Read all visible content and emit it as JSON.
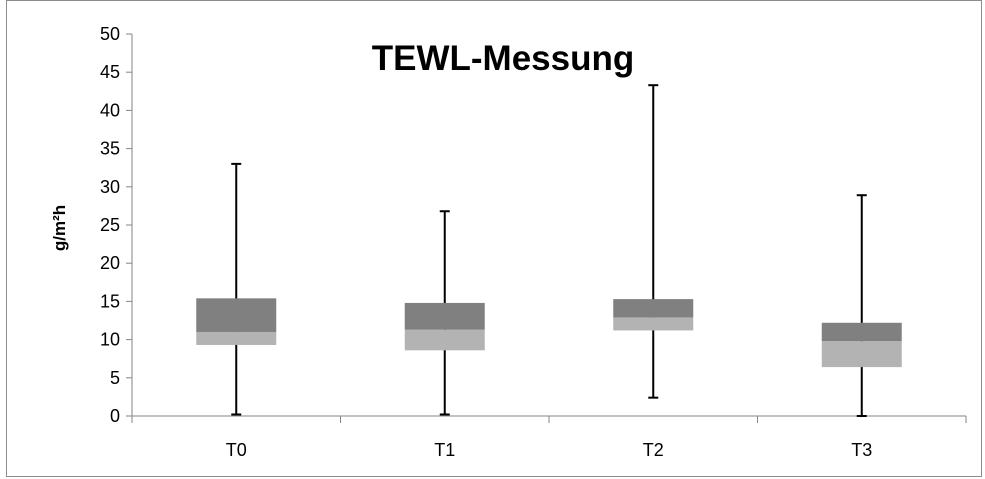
{
  "chart_data": {
    "type": "box",
    "title": "TEWL-Messung",
    "ylabel": "g/m²h",
    "xlabel": "",
    "ylim": [
      0,
      50
    ],
    "yticks": [
      0,
      5,
      10,
      15,
      20,
      25,
      30,
      35,
      40,
      45,
      50
    ],
    "categories": [
      "T0",
      "T1",
      "T2",
      "T3"
    ],
    "boxes": [
      {
        "category": "T0",
        "min": 0.2,
        "q1": 9.3,
        "median": 11.0,
        "q3": 15.4,
        "max": 33.0
      },
      {
        "category": "T1",
        "min": 0.2,
        "q1": 8.6,
        "median": 11.3,
        "q3": 14.8,
        "max": 26.8
      },
      {
        "category": "T2",
        "min": 2.4,
        "q1": 11.2,
        "median": 12.9,
        "q3": 15.3,
        "max": 43.3
      },
      {
        "category": "T3",
        "min": 0.0,
        "q1": 6.4,
        "median": 9.8,
        "q3": 12.2,
        "max": 28.9
      }
    ],
    "grid": false,
    "legend": "none",
    "colors": {
      "upper_box": "#808080",
      "lower_box": "#b3b3b3",
      "whisker": "#000000",
      "axis": "#868686"
    }
  }
}
